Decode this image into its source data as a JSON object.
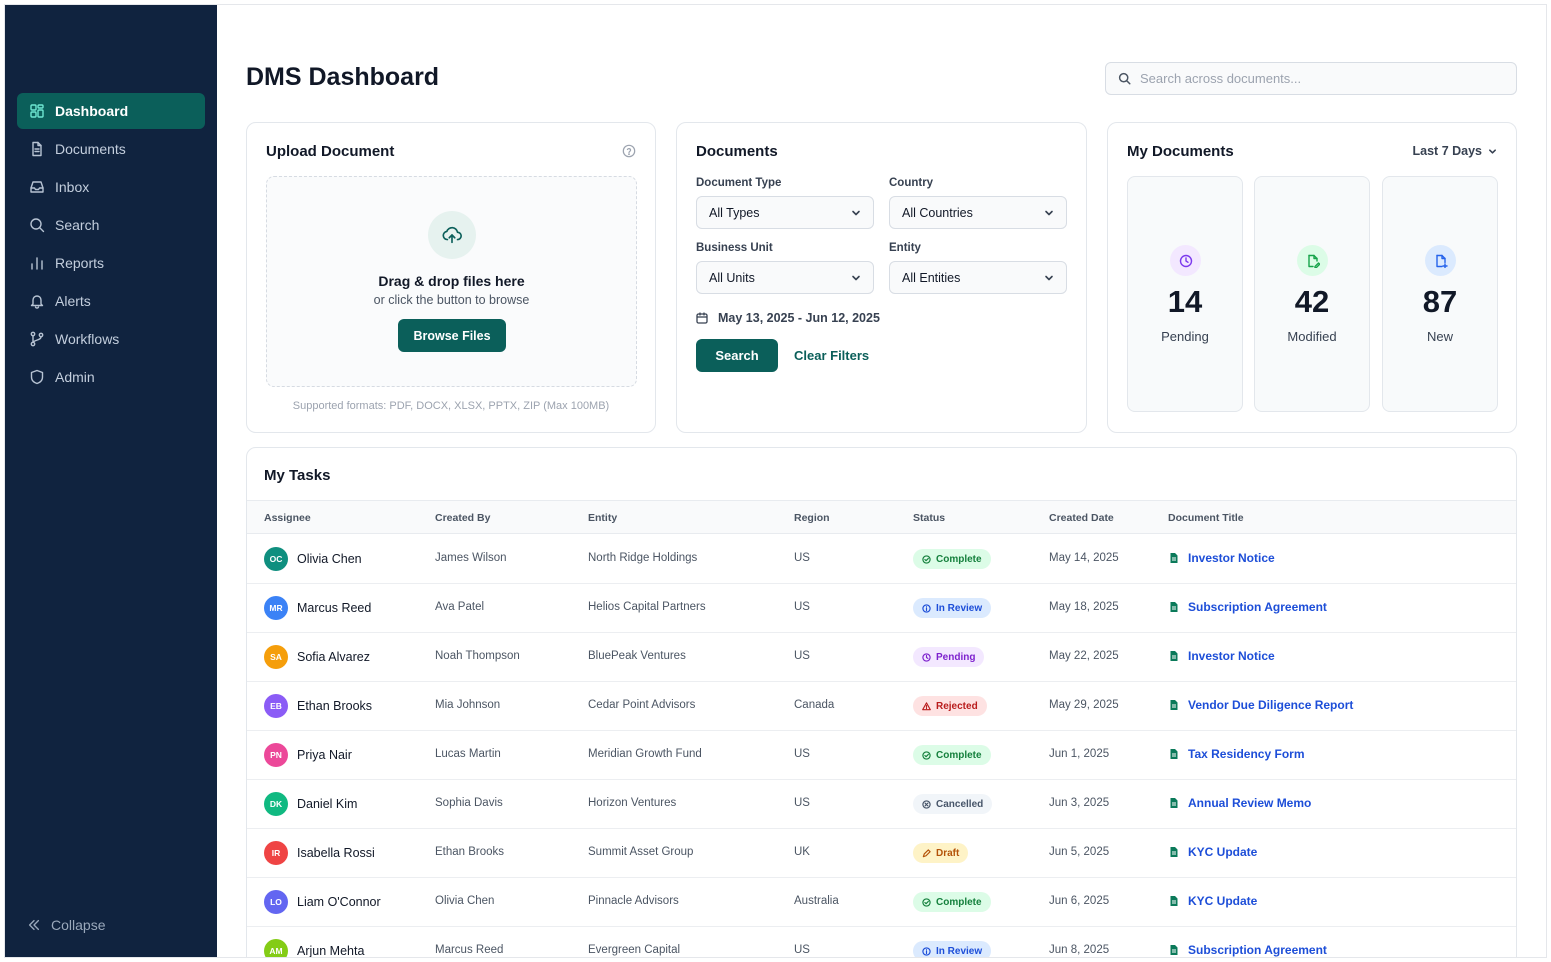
{
  "sidebar": {
    "items": [
      {
        "label": "Dashboard",
        "icon": "dashboard-icon"
      },
      {
        "label": "Documents",
        "icon": "document-icon"
      },
      {
        "label": "Inbox",
        "icon": "inbox-icon"
      },
      {
        "label": "Search",
        "icon": "search-icon"
      },
      {
        "label": "Reports",
        "icon": "bar-chart-icon"
      },
      {
        "label": "Alerts",
        "icon": "bell-icon"
      },
      {
        "label": "Workflows",
        "icon": "git-branch-icon"
      },
      {
        "label": "Admin",
        "icon": "shield-icon"
      }
    ],
    "active": "Dashboard",
    "collapse_label": "Collapse"
  },
  "header": {
    "title": "DMS Dashboard",
    "search_placeholder": "Search across documents..."
  },
  "upload": {
    "title": "Upload Document",
    "drop_title": "Drag & drop files here",
    "drop_sub": "or click the button to browse",
    "browse_label": "Browse Files",
    "formats": "Supported formats: PDF, DOCX, XLSX, PPTX, ZIP (Max 100MB)"
  },
  "documents": {
    "title": "Documents",
    "document_type_label": "Document Type",
    "document_type_value": "All Types",
    "country_label": "Country",
    "country_value": "All Countries",
    "business_unit_label": "Business Unit",
    "business_unit_value": "All Units",
    "entity_label": "Entity",
    "entity_value": "All Entities",
    "date_range": "May 13, 2025 - Jun 12, 2025",
    "search_label": "Search",
    "clear_label": "Clear Filters"
  },
  "my_documents": {
    "title": "My Documents",
    "range": "Last 7 Days",
    "stats": [
      {
        "value": "14",
        "label": "Pending",
        "icon": "clock-icon",
        "color": "#7c3aed",
        "bg": "#f3e8ff"
      },
      {
        "value": "42",
        "label": "Modified",
        "icon": "edit-document-icon",
        "color": "#16a34a",
        "bg": "#dcfce7"
      },
      {
        "value": "87",
        "label": "New",
        "icon": "new-document-icon",
        "color": "#2563eb",
        "bg": "#dbeafe"
      }
    ]
  },
  "tasks": {
    "title": "My Tasks",
    "columns": [
      "Assignee",
      "Created By",
      "Entity",
      "Region",
      "Status",
      "Created Date",
      "Document Title"
    ],
    "rows": [
      {
        "initials": "OC",
        "avatar_color": "#0f8f7f",
        "assignee": "Olivia Chen",
        "created_by": "James Wilson",
        "entity": "North Ridge Holdings",
        "region": "US",
        "status": "Complete",
        "date": "May 14, 2025",
        "doc": "Investor Notice"
      },
      {
        "initials": "MR",
        "avatar_color": "#3b82f6",
        "assignee": "Marcus Reed",
        "created_by": "Ava Patel",
        "entity": "Helios Capital Partners",
        "region": "US",
        "status": "In Review",
        "date": "May 18, 2025",
        "doc": "Subscription Agreement"
      },
      {
        "initials": "SA",
        "avatar_color": "#f59e0b",
        "assignee": "Sofia Alvarez",
        "created_by": "Noah Thompson",
        "entity": "BluePeak Ventures",
        "region": "US",
        "status": "Pending",
        "date": "May 22, 2025",
        "doc": "Investor Notice"
      },
      {
        "initials": "EB",
        "avatar_color": "#8b5cf6",
        "assignee": "Ethan Brooks",
        "created_by": "Mia Johnson",
        "entity": "Cedar Point Advisors",
        "region": "Canada",
        "status": "Rejected",
        "date": "May 29, 2025",
        "doc": "Vendor Due Diligence Report"
      },
      {
        "initials": "PN",
        "avatar_color": "#ec4899",
        "assignee": "Priya Nair",
        "created_by": "Lucas Martin",
        "entity": "Meridian Growth Fund",
        "region": "US",
        "status": "Complete",
        "date": "Jun 1, 2025",
        "doc": "Tax Residency Form"
      },
      {
        "initials": "DK",
        "avatar_color": "#10b981",
        "assignee": "Daniel Kim",
        "created_by": "Sophia Davis",
        "entity": "Horizon Ventures",
        "region": "US",
        "status": "Cancelled",
        "date": "Jun 3, 2025",
        "doc": "Annual Review Memo"
      },
      {
        "initials": "IR",
        "avatar_color": "#ef4444",
        "assignee": "Isabella Rossi",
        "created_by": "Ethan Brooks",
        "entity": "Summit Asset Group",
        "region": "UK",
        "status": "Draft",
        "date": "Jun 5, 2025",
        "doc": "KYC Update"
      },
      {
        "initials": "LO",
        "avatar_color": "#6366f1",
        "assignee": "Liam O'Connor",
        "created_by": "Olivia Chen",
        "entity": "Pinnacle Advisors",
        "region": "Australia",
        "status": "Complete",
        "date": "Jun 6, 2025",
        "doc": "KYC Update"
      },
      {
        "initials": "AM",
        "avatar_color": "#84cc16",
        "assignee": "Arjun Mehta",
        "created_by": "Marcus Reed",
        "entity": "Evergreen Capital",
        "region": "US",
        "status": "In Review",
        "date": "Jun 8, 2025",
        "doc": "Subscription Agreement"
      }
    ]
  },
  "colors": {
    "sidebar_bg": "#10233f",
    "accent": "#0b5f5a",
    "link": "#1d4ed8"
  }
}
